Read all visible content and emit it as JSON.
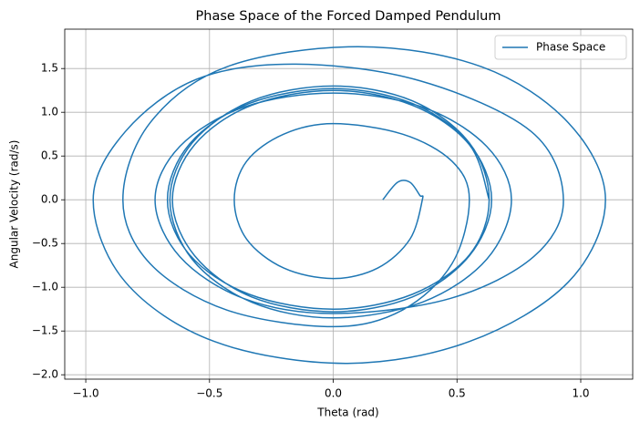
{
  "chart_data": {
    "type": "line",
    "title": "Phase Space of the Forced Damped Pendulum",
    "x_label": "Theta (rad)",
    "y_label": "Angular Velocity (rad/s)",
    "xlim": [
      -1.085,
      1.21
    ],
    "ylim": [
      -2.05,
      1.95
    ],
    "xticks": [
      {
        "value": -1.0,
        "label": "−1.0"
      },
      {
        "value": -0.5,
        "label": "−0.5"
      },
      {
        "value": 0.0,
        "label": "0.0"
      },
      {
        "value": 0.5,
        "label": "0.5"
      },
      {
        "value": 1.0,
        "label": "1.0"
      }
    ],
    "yticks": [
      {
        "value": -2.0,
        "label": "−2.0"
      },
      {
        "value": -1.5,
        "label": "−1.5"
      },
      {
        "value": -1.0,
        "label": "−1.0"
      },
      {
        "value": -0.5,
        "label": "−0.5"
      },
      {
        "value": 0.0,
        "label": "0.0"
      },
      {
        "value": 0.5,
        "label": "0.5"
      },
      {
        "value": 1.0,
        "label": "1.0"
      },
      {
        "value": 1.5,
        "label": "1.5"
      }
    ],
    "grid": true,
    "legend": "upper right",
    "series": [
      {
        "name": "Phase Space",
        "color": "#1f77b4",
        "x": [
          0.2,
          0.26,
          0.31,
          0.35,
          0.36,
          0.31,
          0.18,
          0,
          -0.2,
          -0.35,
          -0.4,
          -0.35,
          -0.2,
          0,
          0.28,
          0.48,
          0.55,
          0.48,
          0.28,
          0,
          -0.43,
          -0.74,
          -0.85,
          -0.74,
          -0.43,
          0.1,
          0.6,
          0.95,
          1.1,
          0.95,
          0.55,
          0.05,
          -0.48,
          -0.84,
          -0.97,
          -0.84,
          -0.55,
          -0.15,
          0.35,
          0.8,
          0.93,
          0.81,
          0.47,
          0,
          -0.36,
          -0.62,
          -0.72,
          -0.62,
          -0.36,
          0,
          0.36,
          0.62,
          0.72,
          0.62,
          0.36,
          0,
          -0.33,
          -0.57,
          -0.66,
          -0.57,
          -0.33,
          0,
          0.32,
          0.55,
          0.63,
          0.55,
          0.32,
          0,
          -0.34,
          -0.58,
          -0.67,
          -0.58,
          -0.34,
          0,
          0.32,
          0.55,
          0.64,
          0.55,
          0.32,
          0,
          -0.33,
          -0.56,
          -0.65,
          -0.56,
          -0.33,
          0,
          0.32,
          0.55,
          0.63
        ],
        "values": [
          0,
          0.2,
          0.2,
          0.05,
          0,
          -0.45,
          -0.78,
          -0.9,
          -0.78,
          -0.45,
          0,
          0.44,
          0.75,
          0.87,
          0.75,
          0.44,
          0,
          -0.73,
          -1.26,
          -1.45,
          -1.26,
          -0.73,
          0,
          0.88,
          1.52,
          1.75,
          1.52,
          0.88,
          0,
          -0.94,
          -1.62,
          -1.87,
          -1.62,
          -0.94,
          0,
          0.78,
          1.38,
          1.55,
          1.36,
          0.78,
          0,
          -0.65,
          -1.13,
          -1.3,
          -1.13,
          -0.65,
          0,
          0.61,
          1.06,
          1.22,
          1.06,
          0.61,
          0,
          -0.68,
          -1.17,
          -1.35,
          -1.17,
          -0.68,
          0,
          0.65,
          1.13,
          1.3,
          1.13,
          0.65,
          0,
          -0.63,
          -1.08,
          -1.25,
          -1.08,
          -0.63,
          0,
          0.64,
          1.1,
          1.27,
          1.1,
          0.64,
          0,
          -0.64,
          -1.11,
          -1.28,
          -1.11,
          -0.64,
          0,
          0.63,
          1.08,
          1.25,
          1.08,
          0.63,
          0
        ]
      }
    ]
  }
}
